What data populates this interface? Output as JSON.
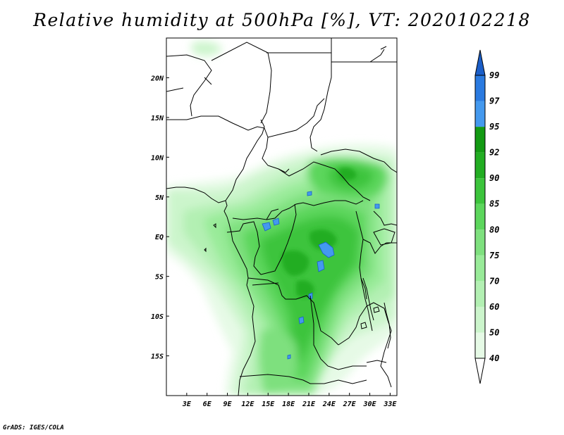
{
  "title": "Relative humidity at 500hPa [%], VT: 2020102218",
  "credit": "GrADS: IGES/COLA",
  "map": {
    "lon_range": [
      0,
      34
    ],
    "lat_range": [
      -20,
      25
    ],
    "x_ticks": [
      "3E",
      "6E",
      "9E",
      "12E",
      "15E",
      "18E",
      "21E",
      "24E",
      "27E",
      "30E",
      "33E"
    ],
    "x_tick_values": [
      3,
      6,
      9,
      12,
      15,
      18,
      21,
      24,
      27,
      30,
      33
    ],
    "y_ticks": [
      "20N",
      "15N",
      "10N",
      "5N",
      "EQ",
      "5S",
      "10S",
      "15S"
    ],
    "y_tick_values": [
      20,
      15,
      10,
      5,
      0,
      -5,
      -10,
      -15
    ]
  },
  "colorbar": {
    "levels": [
      "40",
      "50",
      "60",
      "70",
      "75",
      "80",
      "85",
      "90",
      "92",
      "95",
      "97",
      "99"
    ],
    "colors": [
      "#ffffff",
      "#e6fae6",
      "#ccf5cc",
      "#b3f0b3",
      "#99eb99",
      "#7ee07e",
      "#5cd65c",
      "#3cc43c",
      "#22ad22",
      "#139a13",
      "#4499ee",
      "#2a7ae0",
      "#1a5ec8"
    ]
  }
}
